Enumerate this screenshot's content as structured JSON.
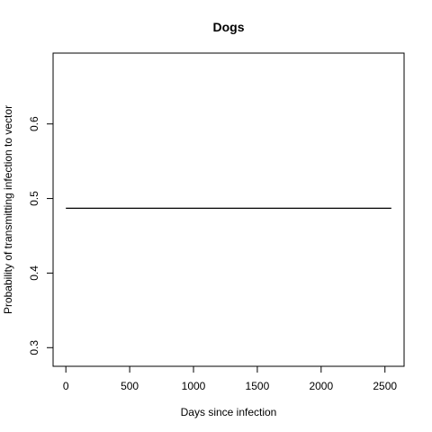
{
  "chart_data": {
    "type": "line",
    "title": "Dogs",
    "xlabel": "Days since infection",
    "ylabel": "Probability of transmitting infection to vector",
    "xlim": [
      -100,
      2650
    ],
    "ylim": [
      0.275,
      0.695
    ],
    "x_ticks": [
      0,
      500,
      1000,
      1500,
      2000,
      2500
    ],
    "y_ticks": [
      0.3,
      0.4,
      0.5,
      0.6
    ],
    "x_tick_labels": [
      "0",
      "500",
      "1000",
      "1500",
      "2000",
      "2500"
    ],
    "y_tick_labels": [
      "0.3",
      "0.4",
      "0.5",
      "0.6"
    ],
    "series": [
      {
        "x": [
          0,
          2550
        ],
        "y": [
          0.487,
          0.487
        ],
        "color": "#000000"
      }
    ],
    "grid": false,
    "legend": "none"
  }
}
